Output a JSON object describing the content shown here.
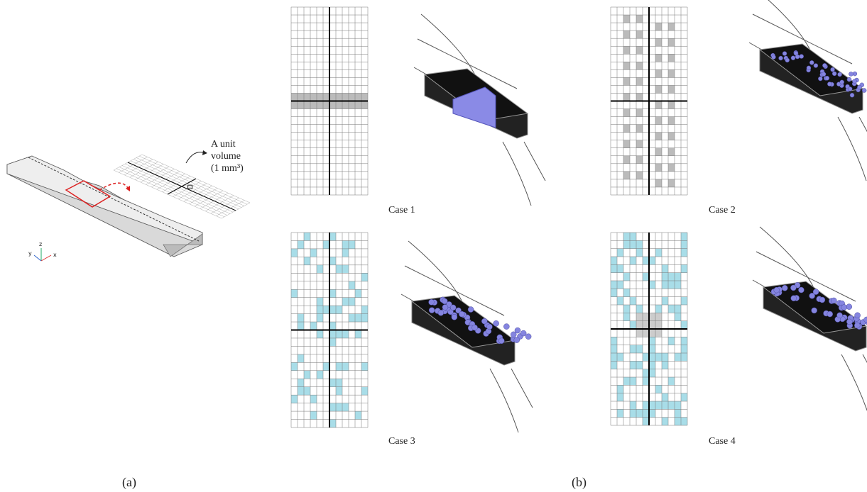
{
  "panel_a": {
    "label": "(a)",
    "annotation": [
      "A unit",
      "volume",
      "(1 mm³)"
    ],
    "axes": [
      "x",
      "y",
      "z"
    ]
  },
  "panel_b": {
    "label": "(b)",
    "cases": [
      "Case 1",
      "Case 2",
      "Case 3",
      "Case 4"
    ]
  }
}
